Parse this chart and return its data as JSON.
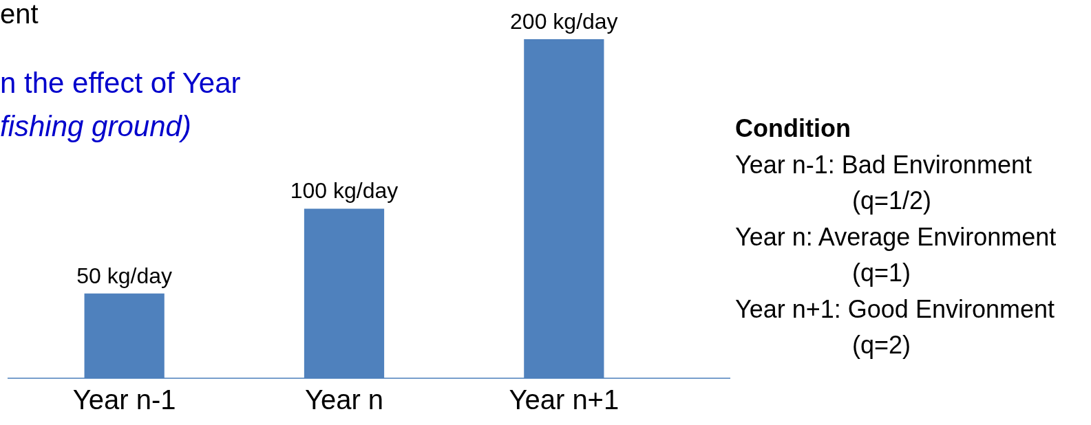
{
  "chart_data": {
    "type": "bar",
    "categories": [
      "Year n-1",
      "Year n",
      "Year n+1"
    ],
    "values": [
      50,
      100,
      200
    ],
    "color": "#4f81bd",
    "value_labels": [
      "50 kg/day",
      "100 kg/day",
      "200 kg/day"
    ],
    "annotations": [
      "ent",
      "n the effect of Year",
      "fishing ground)",
      "Condition",
      "Year n-1: Bad Environment",
      "(q=1/2)",
      "Year n: Average Environment",
      "(q=1)",
      "Year n+1: Good Environment",
      "(q=2)"
    ]
  }
}
